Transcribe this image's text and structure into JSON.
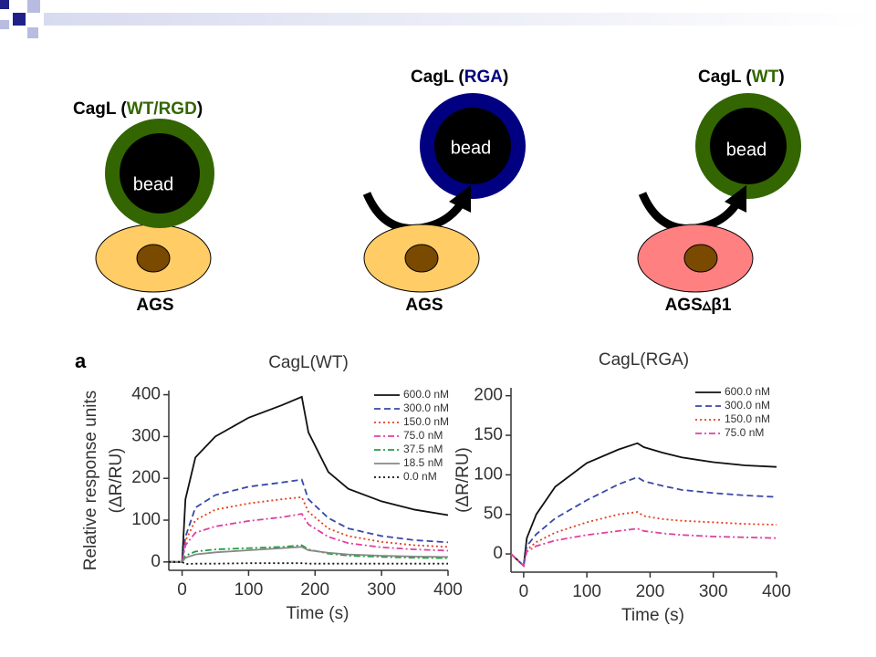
{
  "diagram": {
    "panels": [
      {
        "title": {
          "prefix": "CagL (",
          "variant": "WT/RGD",
          "suffix": ")"
        },
        "bead": "bead",
        "cell": "AGS"
      },
      {
        "title": {
          "prefix": "CagL (",
          "variant": "RGA",
          "suffix": ")"
        },
        "bead": "bead",
        "cell": "AGS"
      },
      {
        "title": {
          "prefix": "CagL (",
          "variant": "WT",
          "suffix": ")"
        },
        "bead": "bead",
        "cell": "AGS▵β1"
      }
    ],
    "panel_label": "a"
  },
  "chart_data": [
    {
      "type": "line",
      "title": "CagL(WT)",
      "xlabel": "Time (s)",
      "ylabel": [
        "Relative response units",
        "(ΔR/RU)"
      ],
      "xlim": [
        -20,
        400
      ],
      "xticks": [
        0,
        100,
        200,
        300,
        400
      ],
      "ylim": [
        -20,
        410
      ],
      "yticks": [
        0,
        100,
        200,
        300,
        400
      ],
      "x": [
        -20,
        0,
        5,
        20,
        50,
        100,
        150,
        180,
        190,
        220,
        250,
        300,
        350,
        400
      ],
      "series": [
        {
          "name": "600.0 nM",
          "color": "#111111",
          "dash": "solid",
          "values": [
            0,
            0,
            150,
            250,
            300,
            345,
            375,
            395,
            310,
            215,
            175,
            145,
            125,
            112
          ]
        },
        {
          "name": "300.0 nM",
          "color": "#3848a8",
          "dash": "dashed",
          "values": [
            0,
            0,
            60,
            130,
            160,
            180,
            190,
            197,
            150,
            105,
            80,
            62,
            52,
            47
          ]
        },
        {
          "name": "150.0 nM",
          "color": "#e04020",
          "dash": "dotted",
          "values": [
            0,
            0,
            50,
            100,
            125,
            140,
            150,
            155,
            120,
            80,
            62,
            48,
            40,
            36
          ]
        },
        {
          "name": "75.0 nM",
          "color": "#e040a0",
          "dash": "dashdot",
          "values": [
            0,
            0,
            40,
            70,
            85,
            98,
            107,
            115,
            90,
            60,
            45,
            35,
            30,
            27
          ]
        },
        {
          "name": "37.5 nM",
          "color": "#20a040",
          "dash": "dashdot",
          "values": [
            0,
            0,
            15,
            25,
            30,
            33,
            36,
            40,
            30,
            20,
            15,
            12,
            10,
            9
          ]
        },
        {
          "name": "18.5 nM",
          "color": "#888888",
          "dash": "solid",
          "values": [
            0,
            0,
            10,
            18,
            23,
            28,
            33,
            36,
            28,
            22,
            18,
            15,
            13,
            12
          ]
        },
        {
          "name": "0.0 nM",
          "color": "#111111",
          "dash": "dotted",
          "values": [
            0,
            0,
            -5,
            -4,
            -4,
            -3,
            -3,
            -3,
            -4,
            -4,
            -4,
            -4,
            -4,
            -4
          ]
        }
      ]
    },
    {
      "type": "line",
      "title": "CagL(RGA)",
      "xlabel": "Time (s)",
      "ylabel": [
        "(ΔR/RU)"
      ],
      "xlim": [
        -20,
        400
      ],
      "xticks": [
        0,
        100,
        200,
        300,
        400
      ],
      "ylim": [
        -23,
        210
      ],
      "yticks": [
        0,
        50,
        100,
        150,
        200
      ],
      "x": [
        -20,
        0,
        5,
        20,
        50,
        100,
        150,
        180,
        190,
        220,
        250,
        300,
        350,
        400
      ],
      "series": [
        {
          "name": "600.0 nM",
          "color": "#111111",
          "dash": "solid",
          "values": [
            0,
            -15,
            20,
            50,
            85,
            115,
            132,
            140,
            135,
            128,
            122,
            116,
            112,
            110
          ]
        },
        {
          "name": "300.0 nM",
          "color": "#3848a8",
          "dash": "dashed",
          "values": [
            0,
            -15,
            10,
            25,
            45,
            68,
            88,
            97,
            92,
            86,
            81,
            77,
            74,
            72
          ]
        },
        {
          "name": "150.0 nM",
          "color": "#e04020",
          "dash": "dotted",
          "values": [
            0,
            -15,
            5,
            15,
            27,
            40,
            50,
            53,
            48,
            44,
            42,
            40,
            38,
            37
          ]
        },
        {
          "name": "75.0 nM",
          "color": "#e040a0",
          "dash": "dashdot",
          "values": [
            0,
            -15,
            3,
            10,
            17,
            24,
            29,
            32,
            29,
            26,
            24,
            22,
            21,
            20
          ]
        }
      ]
    }
  ]
}
